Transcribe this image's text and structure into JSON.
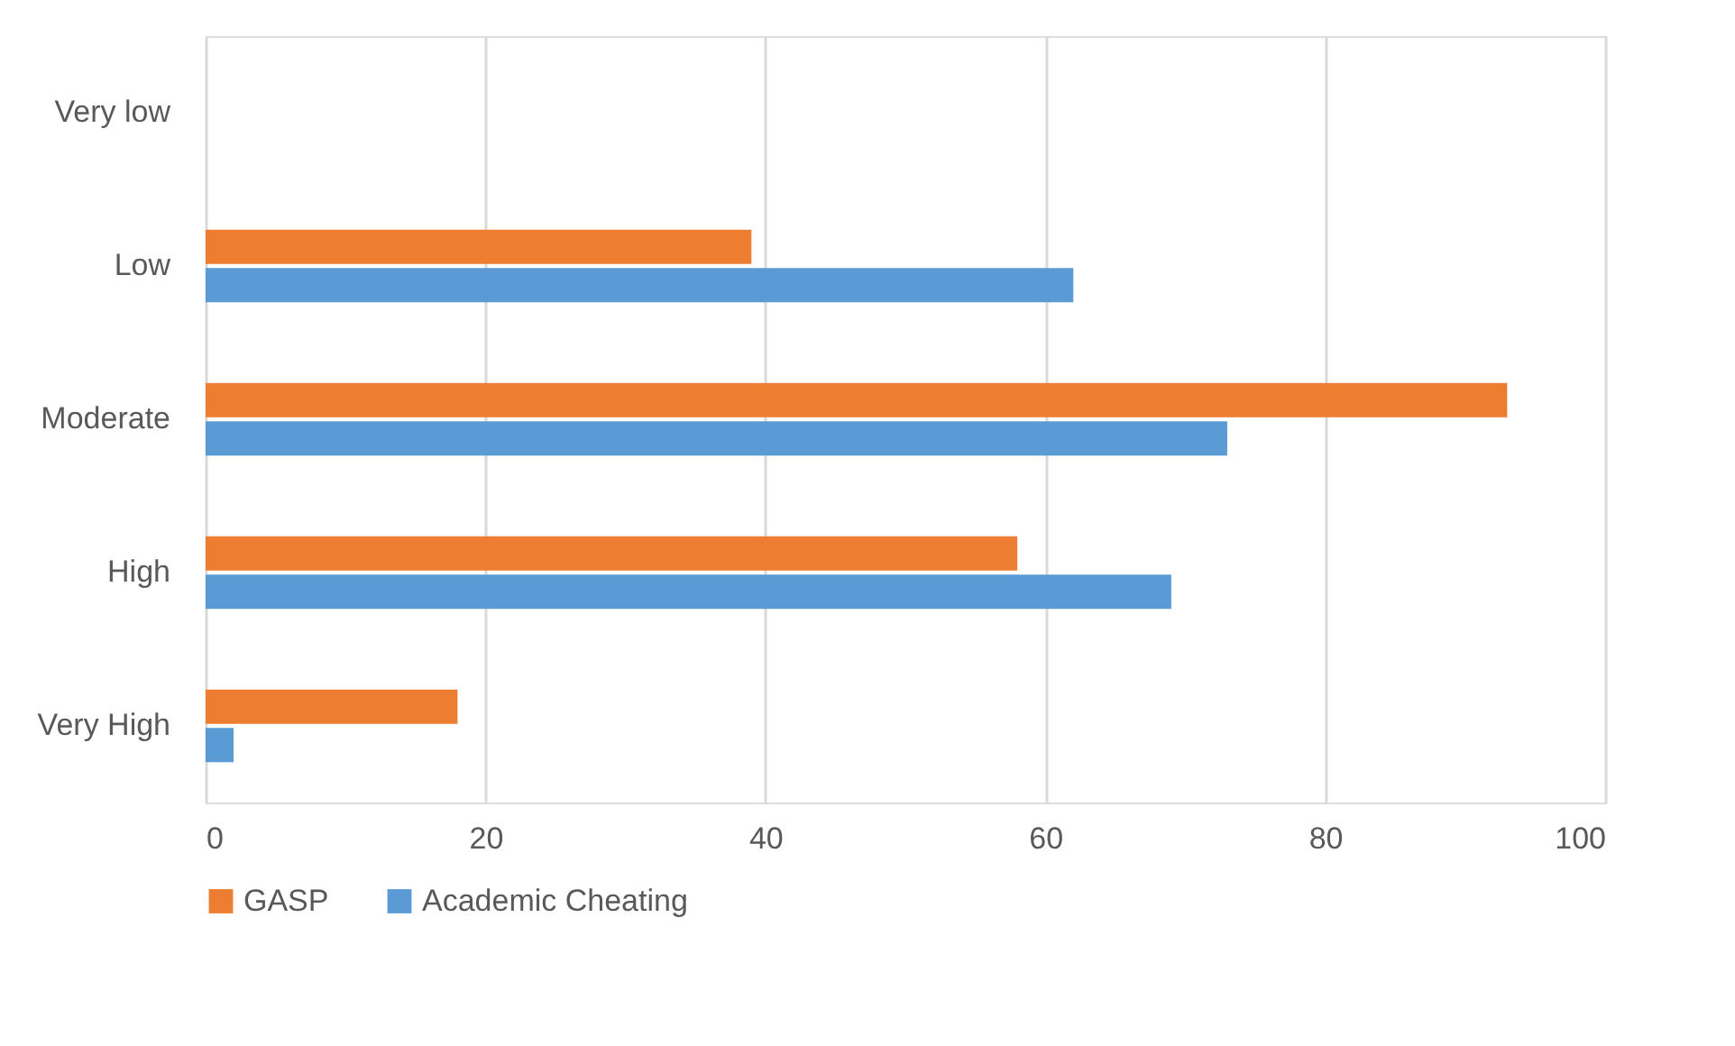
{
  "chart_data": {
    "type": "bar",
    "orientation": "horizontal",
    "categories": [
      "Very low",
      "Low",
      "Moderate",
      "High",
      "Very High"
    ],
    "series": [
      {
        "name": "GASP",
        "color": "#ed7d31",
        "values": [
          null,
          39,
          93,
          58,
          18
        ]
      },
      {
        "name": "Academic Cheating",
        "color": "#5b9bd5",
        "values": [
          null,
          62,
          73,
          69,
          2
        ]
      }
    ],
    "xlim": [
      0,
      100
    ],
    "xticks": [
      0,
      20,
      40,
      60,
      80,
      100
    ],
    "grid": "x",
    "legend": "bottom"
  }
}
